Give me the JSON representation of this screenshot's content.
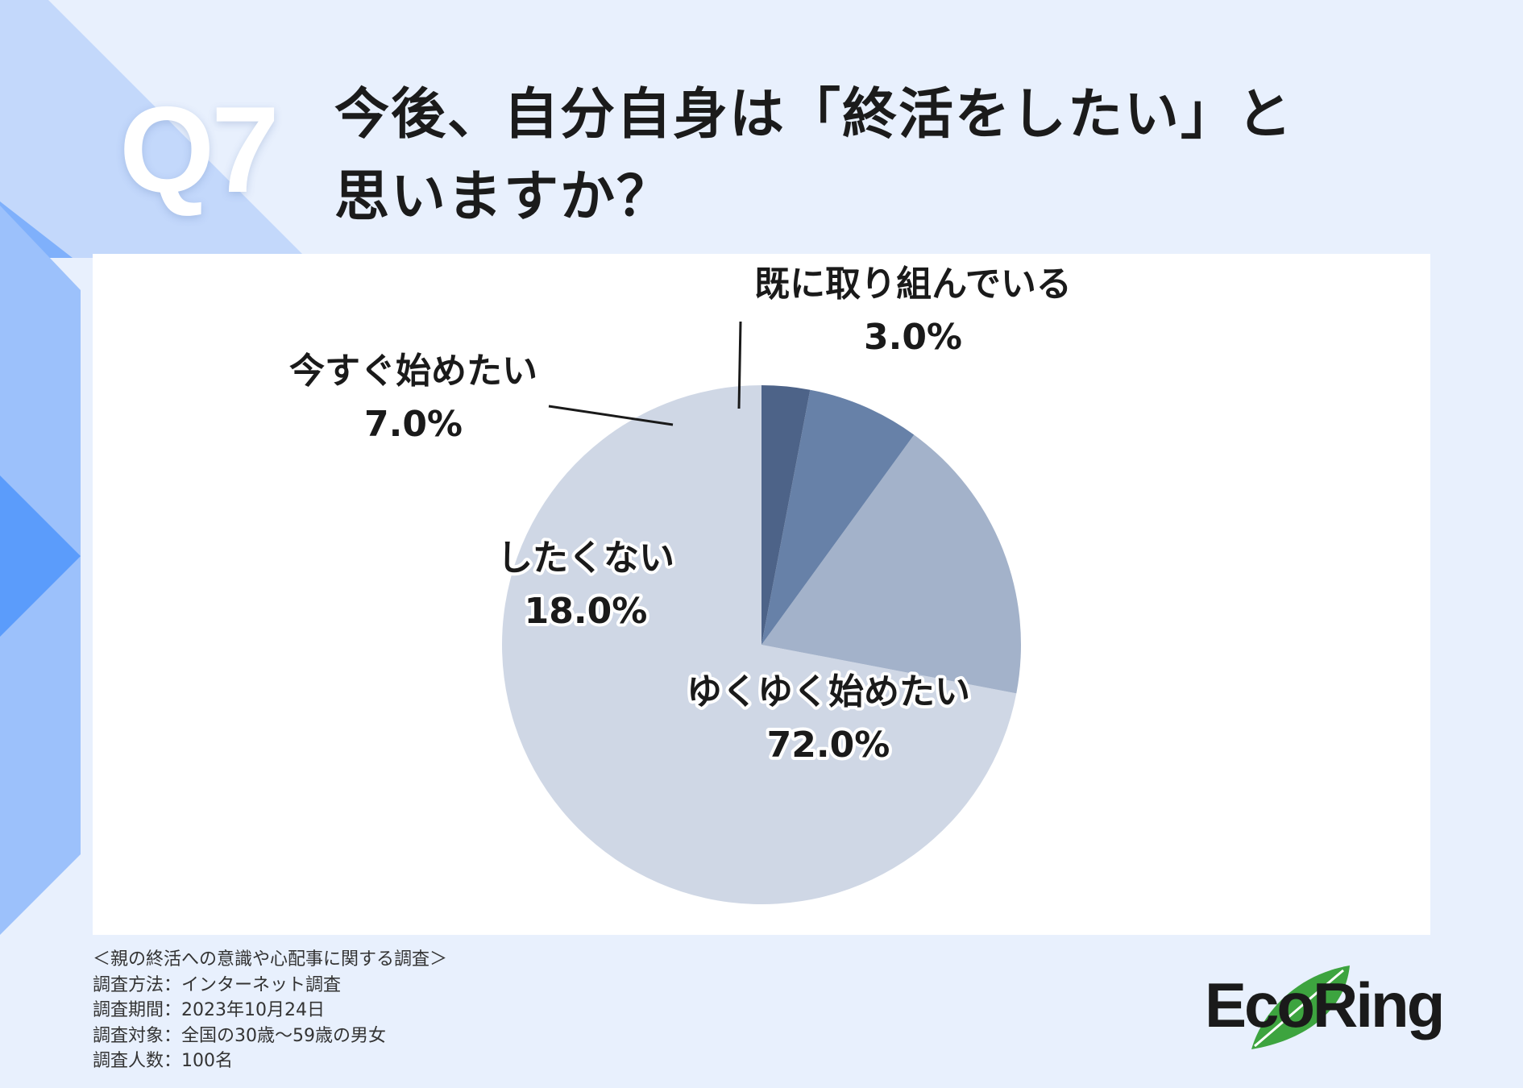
{
  "question_number": "Q7",
  "title_lines": [
    "今後、自分自身は「終活をしたい」と",
    "思いますか？"
  ],
  "chart_data": {
    "type": "pie",
    "start_angle_deg": 0,
    "direction": "counterclockwise",
    "slices": [
      {
        "label": "ゆくゆく始めたい",
        "value": 72.0,
        "value_label": "72.0%",
        "color": "#cfd7e5"
      },
      {
        "label": "したくない",
        "value": 18.0,
        "value_label": "18.0%",
        "color": "#a3b2ca"
      },
      {
        "label": "今すぐ始めたい",
        "value": 7.0,
        "value_label": "7.0%",
        "color": "#6781a8"
      },
      {
        "label": "既に取り組んでいる",
        "value": 3.0,
        "value_label": "3.0%",
        "color": "#4d6388"
      }
    ]
  },
  "footnote": {
    "title": "＜親の終活への意識や心配事に関する調査＞",
    "method": "調査方法：インターネット調査",
    "period": "調査期間：2023年10月24日",
    "target": "調査対象：全国の30歳〜59歳の男女",
    "count": "調査人数：100名"
  },
  "logo": {
    "text": "EcoRing"
  },
  "colors": {
    "background": "#e8f0fd",
    "accent": "#5b9cfb",
    "leaf": "#3da43f"
  }
}
